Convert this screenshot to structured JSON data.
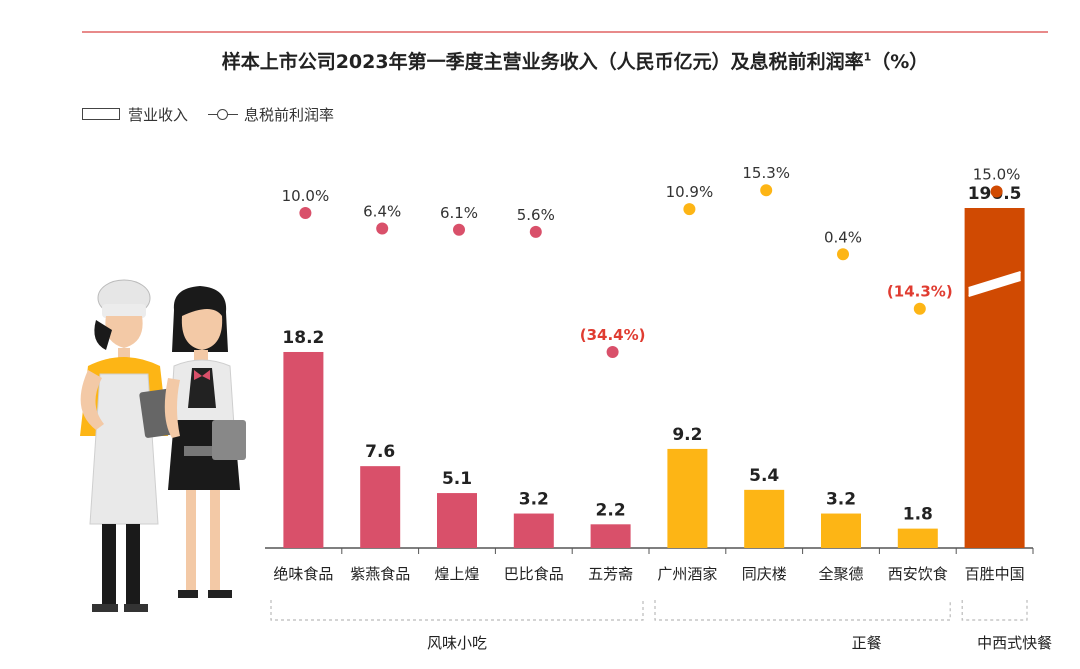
{
  "title": "样本上市公司2023年第一季度主营业务收入（人民币亿元）及息税前利润率",
  "title_sup": "1",
  "title_unit": "（%）",
  "legend": {
    "bar_label": "营业收入",
    "line_label": "息税前利润率"
  },
  "colors": {
    "snack": "#d9506a",
    "dinner": "#fdb515",
    "fastfood": "#d04a02",
    "negative": "#e03c31",
    "rule": "#e88a8a"
  },
  "chart_data": {
    "type": "bar",
    "title": "样本上市公司2023年第一季度主营业务收入（人民币亿元）及息税前利润率（%）",
    "categories": [
      "绝味食品",
      "紫燕食品",
      "煌上煌",
      "巴比食品",
      "五芳斋",
      "广州酒家",
      "同庆楼",
      "全聚德",
      "西安饮食",
      "百胜中国"
    ],
    "series": [
      {
        "name": "营业收入",
        "values": [
          18.2,
          7.6,
          5.1,
          3.2,
          2.2,
          9.2,
          5.4,
          3.2,
          1.8,
          190.5
        ],
        "labels": [
          "18.2",
          "7.6",
          "5.1",
          "3.2",
          "2.2",
          "9.2",
          "5.4",
          "3.2",
          "1.8",
          "190.5"
        ]
      },
      {
        "name": "息税前利润率",
        "values": [
          10.0,
          6.4,
          6.1,
          5.6,
          -34.4,
          10.9,
          15.3,
          0.4,
          -14.3,
          15.0
        ],
        "labels": [
          "10.0%",
          "6.4%",
          "6.1%",
          "5.6%",
          "(34.4%)",
          "10.9%",
          "15.3%",
          "0.4%",
          "(14.3%)",
          "15.0%"
        ]
      }
    ],
    "groups": [
      {
        "label": "风味小吃",
        "color_key": "snack",
        "members": [
          0,
          1,
          2,
          3,
          4
        ]
      },
      {
        "label": "正餐",
        "color_key": "dinner",
        "members": [
          5,
          6,
          7,
          8
        ]
      },
      {
        "label": "中西式快餐",
        "color_key": "fastfood",
        "members": [
          9
        ]
      }
    ],
    "axis_break_on": [
      "百胜中国"
    ]
  }
}
